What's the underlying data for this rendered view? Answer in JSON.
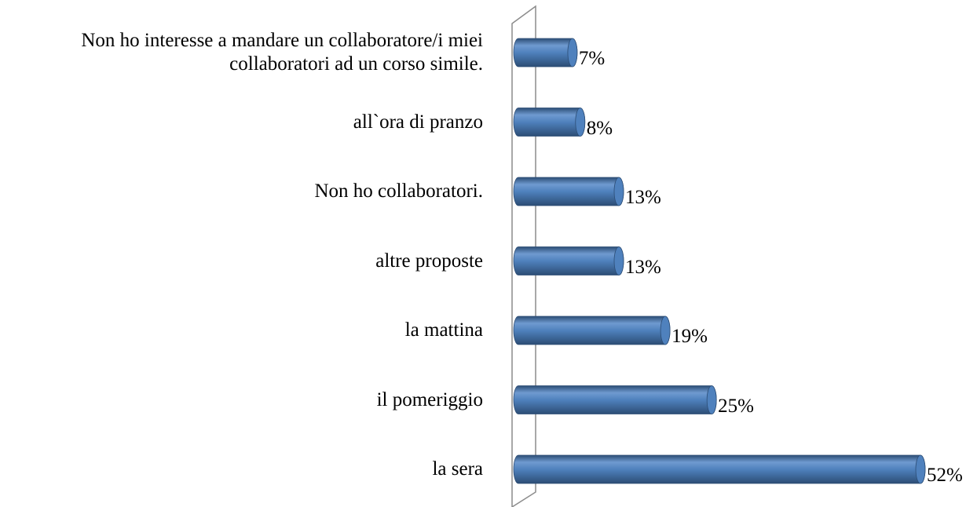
{
  "chart_data": {
    "type": "bar",
    "orientation": "horizontal",
    "categories": [
      "Non ho interesse a mandare un collaboratore/i miei collaboratori ad un corso simile.",
      "all`ora di pranzo",
      "Non ho collaboratori.",
      "altre proposte",
      "la mattina",
      "il pomeriggio",
      "la sera"
    ],
    "values": [
      7,
      8,
      13,
      13,
      19,
      25,
      52
    ],
    "value_labels": [
      "7%",
      "8%",
      "13%",
      "13%",
      "19%",
      "25%",
      "52%"
    ],
    "color": "#4f81bd"
  }
}
